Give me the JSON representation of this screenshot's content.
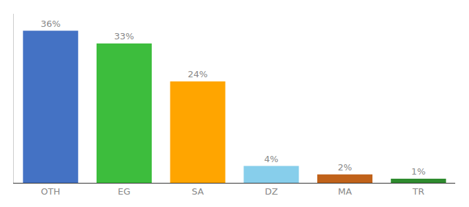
{
  "chart_data": {
    "type": "bar",
    "categories": [
      "OTH",
      "EG",
      "SA",
      "DZ",
      "MA",
      "TR"
    ],
    "values": [
      36,
      33,
      24,
      4,
      2,
      1
    ],
    "value_labels": [
      "36%",
      "33%",
      "24%",
      "4%",
      "2%",
      "1%"
    ],
    "colors": [
      "#4472C4",
      "#3DBD3D",
      "#FFA500",
      "#87CEEB",
      "#C0621A",
      "#2E8B2E"
    ],
    "ylim": [
      0,
      40
    ],
    "grid": false,
    "data_labels": true,
    "tick_labels": "x"
  }
}
